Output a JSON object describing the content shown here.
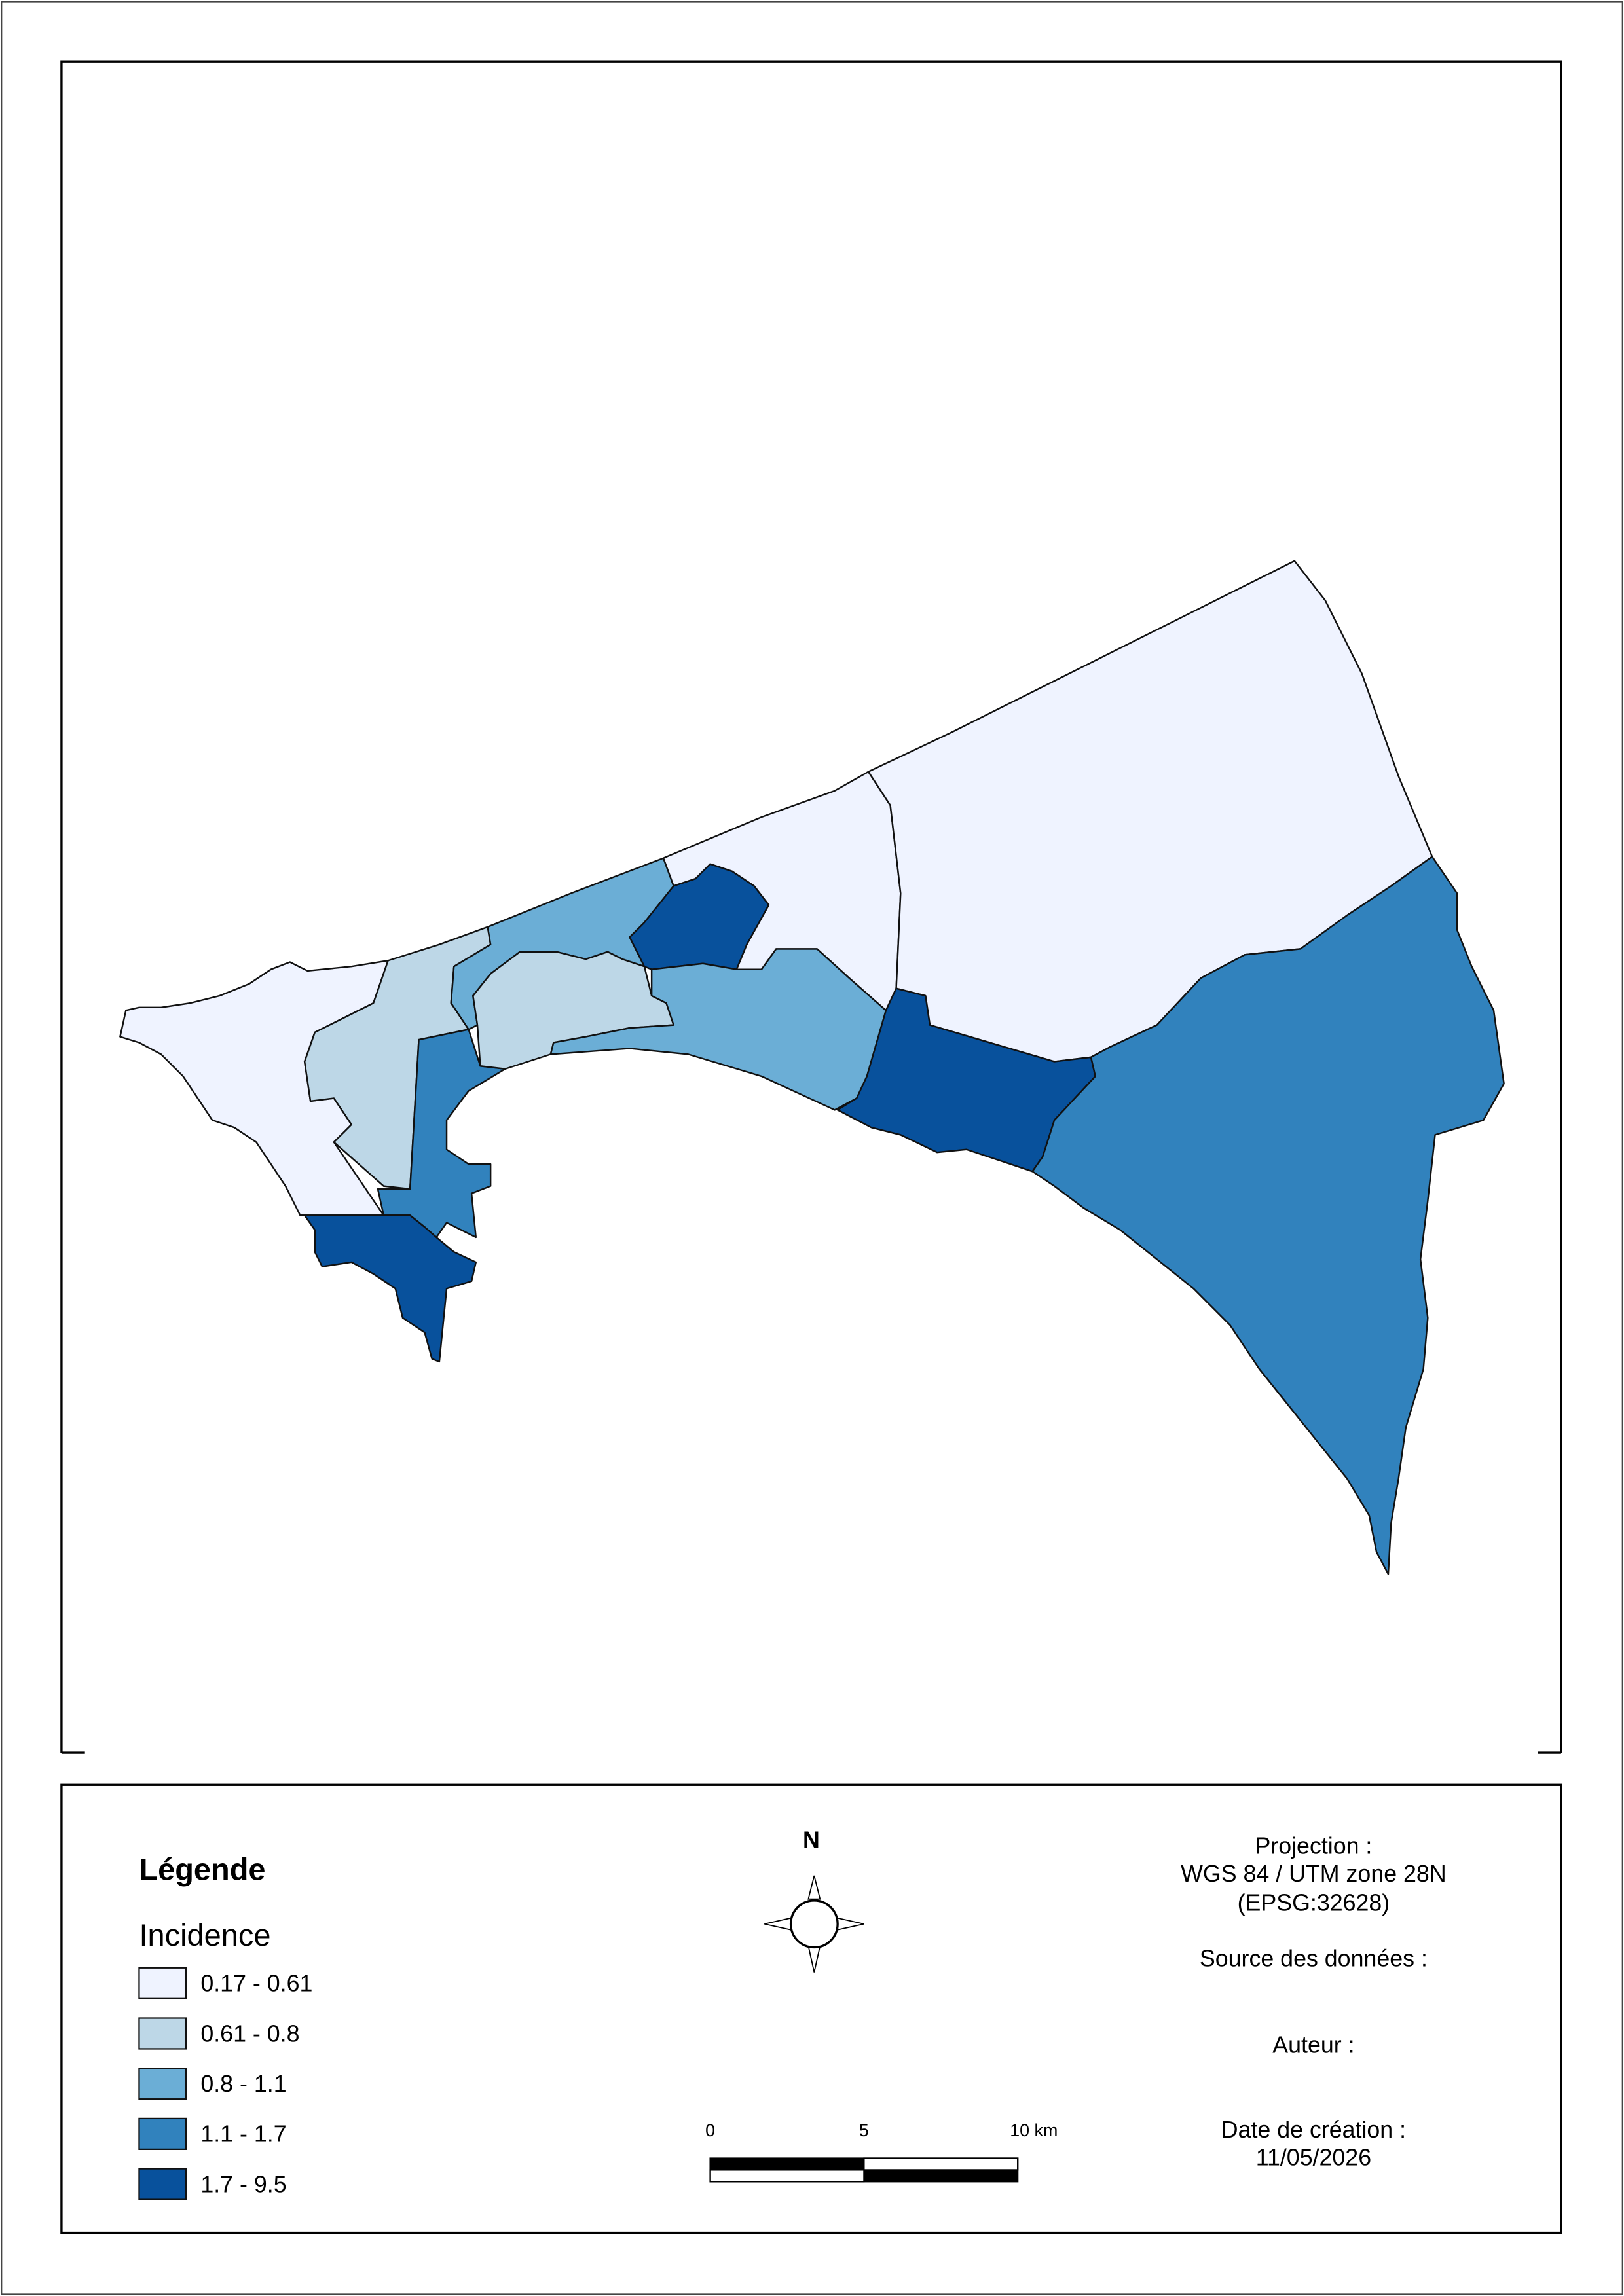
{
  "legend": {
    "title": "Légende",
    "subtitle": "Incidence",
    "classes": [
      {
        "label": "0.17 - 0.61",
        "color": "#eff3ff"
      },
      {
        "label": "0.61 - 0.8",
        "color": "#bdd7e7"
      },
      {
        "label": "0.8 - 1.1",
        "color": "#6baed6"
      },
      {
        "label": "1.1 - 1.7",
        "color": "#3182bd"
      },
      {
        "label": "1.7 - 9.5",
        "color": "#08519c"
      }
    ]
  },
  "north": "N",
  "scale_bar": [
    "0",
    "5",
    "10 km"
  ],
  "info": {
    "projection": [
      "Projection :",
      "WGS 84 / UTM zone 28N",
      "(EPSG:32628)"
    ],
    "source": "Source des données :",
    "author": "Auteur :",
    "date_label": "Date de création :",
    "date": "11/05/2026"
  }
}
